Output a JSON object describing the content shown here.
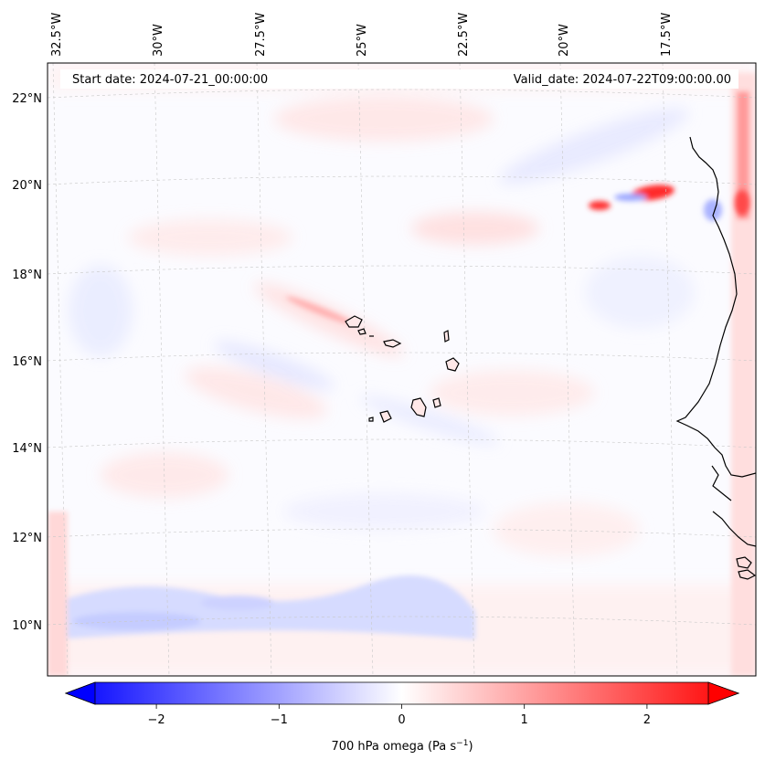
{
  "header": {
    "start_date": "Start date: 2024-07-21_00:00:00",
    "valid_date": "Valid_date: 2024-07-22T09:00:00.00"
  },
  "longitude_labels": [
    "32.5°W",
    "30°W",
    "27.5°W",
    "25°W",
    "22.5°W",
    "20°W",
    "17.5°W"
  ],
  "latitude_labels": [
    "22°N",
    "20°N",
    "18°N",
    "16°N",
    "14°N",
    "12°N",
    "10°N"
  ],
  "colorbar": {
    "label": "700 hPa omega (Pa s",
    "label_exponent": "−1",
    "label_close": ")",
    "tick_labels": [
      "−2",
      "−1",
      "0",
      "1",
      "2"
    ],
    "ticks": [
      -2,
      -1,
      0,
      1,
      2
    ],
    "range": [
      -2.5,
      2.5
    ],
    "colors": {
      "negative": "#0000ff",
      "zero": "#ffffff",
      "positive": "#ff0000"
    }
  },
  "map": {
    "variable": "700 hPa omega",
    "coastline_color": "#000000",
    "gridline_color": "#c8c8c8"
  }
}
